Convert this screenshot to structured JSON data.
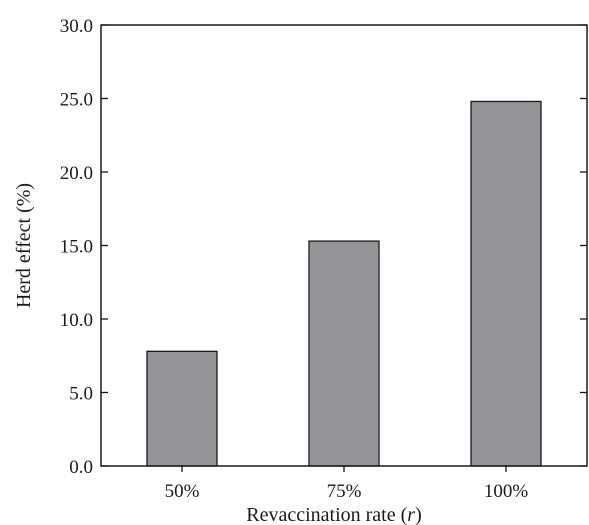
{
  "chart_data": {
    "type": "bar",
    "categories": [
      "50%",
      "75%",
      "100%"
    ],
    "values": [
      7.8,
      15.3,
      24.8
    ],
    "title": "",
    "xlabel": "Revaccination rate (",
    "xlabel_var": "r",
    "xlabel_close": ")",
    "ylabel": "Herd effect (%)",
    "ylim": [
      0,
      30
    ],
    "yticks": [
      "0.0",
      "5.0",
      "10.0",
      "15.0",
      "20.0",
      "25.0",
      "30.0"
    ],
    "bar_color": "#939598",
    "bar_stroke": "#1a1a1a",
    "grid": false,
    "legend": "none"
  }
}
